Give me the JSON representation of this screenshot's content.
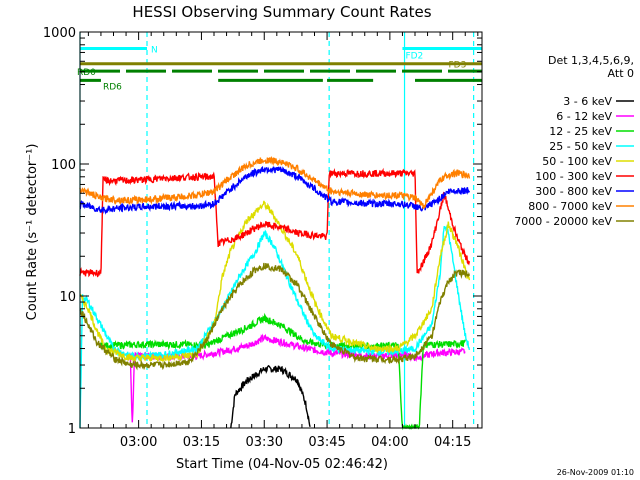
{
  "chart_data": {
    "type": "line",
    "title": "HESSI Observing Summary Count Rates",
    "xlabel": "Start Time (04-Nov-05 02:46:42)",
    "ylabel": "Count Rate (s⁻¹ detector⁻¹)",
    "y_scale": "log",
    "xlim_minutes": [
      0,
      96
    ],
    "ylim": [
      1,
      1000
    ],
    "x_ticks": [
      {
        "m": 14,
        "label": "03:00"
      },
      {
        "m": 29,
        "label": "03:15"
      },
      {
        "m": 44,
        "label": "03:30"
      },
      {
        "m": 59,
        "label": "03:45"
      },
      {
        "m": 74,
        "label": "04:00"
      },
      {
        "m": 89,
        "label": "04:15"
      }
    ],
    "y_ticks": [
      {
        "v": 1,
        "label": "1"
      },
      {
        "v": 10,
        "label": "10"
      },
      {
        "v": 100,
        "label": "100"
      },
      {
        "v": 1000,
        "label": "1000"
      }
    ],
    "legend_title": [
      "Det 1,3,4,5,6,9,",
      "Att 0"
    ],
    "legend_placement": "right",
    "series": [
      {
        "name": "3 - 6 keV",
        "color": "#000000",
        "points": [
          [
            36,
            1
          ],
          [
            37,
            1.8
          ],
          [
            40,
            2.3
          ],
          [
            44,
            2.8
          ],
          [
            48,
            2.8
          ],
          [
            52,
            2.3
          ],
          [
            54,
            1.5
          ],
          [
            55,
            1
          ]
        ]
      },
      {
        "name": "6 - 12 keV",
        "color": "#ff00ff",
        "points": [
          [
            12,
            3.5
          ],
          [
            12.5,
            1
          ],
          [
            13,
            3.5
          ],
          [
            20,
            3.5
          ],
          [
            28,
            3.5
          ],
          [
            34,
            3.8
          ],
          [
            40,
            4.2
          ],
          [
            44,
            4.8
          ],
          [
            48,
            4.5
          ],
          [
            54,
            4
          ],
          [
            60,
            3.7
          ],
          [
            70,
            3.5
          ],
          [
            78,
            3.6
          ],
          [
            80,
            3.4
          ],
          [
            85,
            3.7
          ],
          [
            92,
            3.8
          ]
        ]
      },
      {
        "name": "12 - 25 keV",
        "color": "#00dd00",
        "points": [
          [
            5,
            4.2
          ],
          [
            15,
            4.3
          ],
          [
            25,
            4.3
          ],
          [
            30,
            4.2
          ],
          [
            34,
            4.8
          ],
          [
            40,
            5.8
          ],
          [
            44,
            6.8
          ],
          [
            48,
            6
          ],
          [
            54,
            4.5
          ],
          [
            60,
            4.2
          ],
          [
            70,
            4.2
          ],
          [
            76,
            4.2
          ],
          [
            77,
            1
          ],
          [
            81,
            1
          ],
          [
            82,
            4.3
          ],
          [
            88,
            4.3
          ],
          [
            92,
            4.4
          ]
        ]
      },
      {
        "name": "25 - 50 keV",
        "color": "#00ffff",
        "points": [
          [
            0,
            1
          ],
          [
            0.6,
            10
          ],
          [
            2,
            9
          ],
          [
            5,
            6
          ],
          [
            8,
            4
          ],
          [
            12,
            3.5
          ],
          [
            20,
            3.6
          ],
          [
            28,
            4
          ],
          [
            34,
            8
          ],
          [
            38,
            14
          ],
          [
            42,
            22
          ],
          [
            44,
            30
          ],
          [
            46,
            25
          ],
          [
            48,
            18
          ],
          [
            52,
            9
          ],
          [
            56,
            5
          ],
          [
            60,
            4
          ],
          [
            70,
            3.8
          ],
          [
            76,
            3.8
          ],
          [
            80,
            4
          ],
          [
            84,
            6
          ],
          [
            86,
            15
          ],
          [
            87,
            35
          ],
          [
            88,
            30
          ],
          [
            90,
            12
          ],
          [
            92,
            5
          ],
          [
            93,
            4
          ]
        ]
      },
      {
        "name": "50 - 100 keV",
        "color": "#dddd00",
        "points": [
          [
            0,
            10
          ],
          [
            2,
            8
          ],
          [
            4,
            5.5
          ],
          [
            6,
            4
          ],
          [
            12,
            3.4
          ],
          [
            20,
            3.4
          ],
          [
            28,
            3.6
          ],
          [
            32,
            6
          ],
          [
            34,
            14
          ],
          [
            36,
            22
          ],
          [
            40,
            38
          ],
          [
            44,
            50
          ],
          [
            46,
            42
          ],
          [
            48,
            33
          ],
          [
            52,
            20
          ],
          [
            56,
            9
          ],
          [
            60,
            5
          ],
          [
            70,
            4
          ],
          [
            76,
            4
          ],
          [
            80,
            5
          ],
          [
            84,
            8
          ],
          [
            86,
            20
          ],
          [
            88,
            35
          ],
          [
            90,
            25
          ],
          [
            92,
            16
          ],
          [
            93,
            13
          ]
        ]
      },
      {
        "name": "100 - 300 keV",
        "color": "#ff0000",
        "points": [
          [
            0,
            15
          ],
          [
            5,
            15
          ],
          [
            5.5,
            75
          ],
          [
            12,
            75
          ],
          [
            20,
            78
          ],
          [
            28,
            80
          ],
          [
            32,
            80
          ],
          [
            33,
            25
          ],
          [
            38,
            28
          ],
          [
            42,
            33
          ],
          [
            44,
            35
          ],
          [
            48,
            33
          ],
          [
            52,
            30
          ],
          [
            59,
            28
          ],
          [
            59.5,
            85
          ],
          [
            70,
            85
          ],
          [
            76,
            85
          ],
          [
            80,
            85
          ],
          [
            80.5,
            15
          ],
          [
            82,
            18
          ],
          [
            84,
            25
          ],
          [
            86,
            45
          ],
          [
            87,
            60
          ],
          [
            88,
            45
          ],
          [
            90,
            28
          ],
          [
            92,
            20
          ],
          [
            93,
            18
          ]
        ]
      },
      {
        "name": "300 - 800 keV",
        "color": "#0000ff",
        "points": [
          [
            0,
            50
          ],
          [
            5,
            45
          ],
          [
            12,
            47
          ],
          [
            20,
            48
          ],
          [
            28,
            48
          ],
          [
            32,
            50
          ],
          [
            36,
            65
          ],
          [
            40,
            82
          ],
          [
            44,
            92
          ],
          [
            48,
            90
          ],
          [
            52,
            80
          ],
          [
            56,
            65
          ],
          [
            60,
            52
          ],
          [
            70,
            50
          ],
          [
            76,
            50
          ],
          [
            80,
            48
          ],
          [
            82,
            45
          ],
          [
            84,
            50
          ],
          [
            86,
            55
          ],
          [
            88,
            62
          ],
          [
            90,
            63
          ],
          [
            93,
            63
          ]
        ]
      },
      {
        "name": "800 - 7000 keV",
        "color": "#ff8000",
        "points": [
          [
            0,
            65
          ],
          [
            5,
            55
          ],
          [
            12,
            53
          ],
          [
            20,
            55
          ],
          [
            28,
            58
          ],
          [
            32,
            62
          ],
          [
            36,
            80
          ],
          [
            40,
            98
          ],
          [
            44,
            108
          ],
          [
            48,
            104
          ],
          [
            52,
            92
          ],
          [
            56,
            75
          ],
          [
            60,
            62
          ],
          [
            70,
            58
          ],
          [
            76,
            58
          ],
          [
            80,
            55
          ],
          [
            82,
            48
          ],
          [
            84,
            60
          ],
          [
            86,
            75
          ],
          [
            88,
            83
          ],
          [
            90,
            85
          ],
          [
            93,
            82
          ]
        ]
      },
      {
        "name": "7000 - 20000 keV",
        "color": "#808000",
        "points": [
          [
            0,
            8
          ],
          [
            2,
            6
          ],
          [
            4,
            4.5
          ],
          [
            8,
            3.4
          ],
          [
            12,
            3
          ],
          [
            20,
            3
          ],
          [
            26,
            3.2
          ],
          [
            30,
            4.5
          ],
          [
            34,
            8
          ],
          [
            38,
            12
          ],
          [
            42,
            16
          ],
          [
            44,
            17
          ],
          [
            48,
            16
          ],
          [
            52,
            12
          ],
          [
            56,
            7
          ],
          [
            60,
            4.3
          ],
          [
            66,
            3.4
          ],
          [
            76,
            3.3
          ],
          [
            80,
            3.5
          ],
          [
            84,
            5
          ],
          [
            86,
            9
          ],
          [
            88,
            13
          ],
          [
            90,
            15
          ],
          [
            93,
            15
          ]
        ]
      }
    ],
    "annotations": [
      {
        "label": "N",
        "color": "#00ffff",
        "segments": [
          [
            0,
            16
          ]
        ],
        "y": 750
      },
      {
        "label": "FD2",
        "color": "#00ffff",
        "segments": [
          [
            77,
            96
          ]
        ],
        "y": 750
      },
      {
        "label": "FD3",
        "color": "#808000",
        "segments": [
          [
            0,
            96
          ]
        ],
        "y": 575
      },
      {
        "label": "RD0",
        "color": "#008000",
        "segments": [
          [
            0,
            96
          ]
        ],
        "y": 505,
        "dashed": true
      },
      {
        "label": "RD6",
        "color": "#008000",
        "segments": [
          [
            0,
            5
          ],
          [
            33,
            58
          ],
          [
            59,
            70
          ],
          [
            80,
            96
          ]
        ],
        "y": 430
      }
    ],
    "cyan_markers": {
      "solid_minutes": [
        0,
        77.5
      ],
      "dashed_minutes": [
        16,
        59.5,
        94
      ]
    },
    "footer_date": "26-Nov-2009 01:10"
  }
}
